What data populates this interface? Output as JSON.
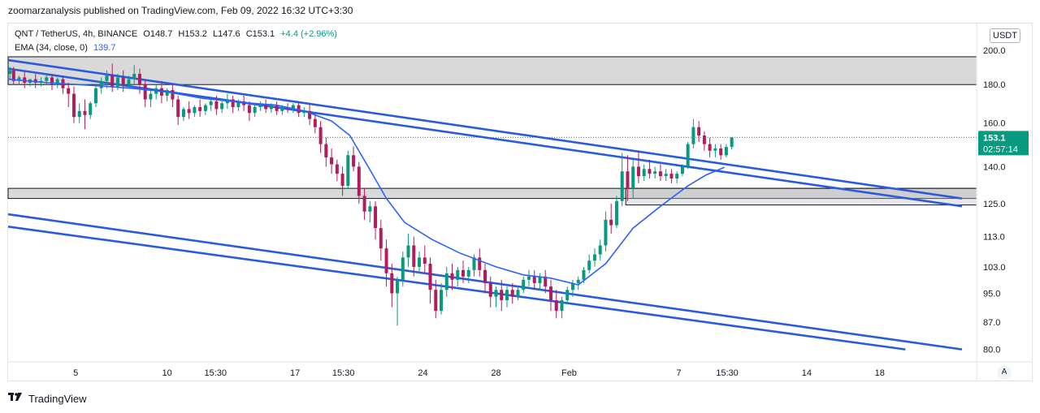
{
  "header": {
    "published_line": "zoomarzanalysis published on TradingView.com, Feb 09, 2022 16:32 UTC+3:30"
  },
  "legend": {
    "symbol": "QNT / TetherUS, 4h, BINANCE",
    "open": "O148.7",
    "high": "H153.2",
    "low": "L147.6",
    "close": "C153.1",
    "change": "+4.4 (+2.96%)",
    "ema_label": "EMA (34, close, 0)",
    "ema_value": "139.7"
  },
  "controls": {
    "currency": "USDT",
    "auto_scale": "A"
  },
  "footer": {
    "brand": "TradingView"
  },
  "colors": {
    "up": "#089981",
    "down": "#b11c5e",
    "ema": "#2962ff",
    "trendline": "#2a5bde",
    "zone": "#cfcfcf"
  },
  "chart_data": {
    "type": "candlestick",
    "symbol": "QNT / TetherUS",
    "interval": "4h",
    "exchange": "BINANCE",
    "last_price": {
      "label": "153.1",
      "countdown": "02:57:14"
    },
    "y_ticks": [
      "200.0",
      "180.0",
      "160.0",
      "140.0",
      "125.0",
      "113.0",
      "103.0",
      "95.0",
      "87.0",
      "80.0"
    ],
    "y_tick_values": [
      200,
      180,
      160,
      140,
      125,
      113,
      103,
      95,
      87,
      80
    ],
    "y_scale": "log",
    "ylim": [
      77,
      217
    ],
    "x_ticks": [
      "5",
      "10",
      "15:30",
      "17",
      "15:30",
      "24",
      "28",
      "Feb",
      "7",
      "15:30",
      "14",
      "18"
    ],
    "x_tick_days": [
      5,
      10,
      12.65,
      17,
      19.65,
      24,
      28,
      32,
      38,
      40.65,
      45,
      49
    ],
    "xlim_days": [
      1.3,
      54.3
    ],
    "x_unit": "days since Jan 1, 2022",
    "zones": [
      {
        "from": 180,
        "to": 196
      },
      {
        "from": 127,
        "to": 131
      }
    ],
    "trendlines": [
      {
        "start": [
          1.3,
          194
        ],
        "end": [
          53.5,
          127
        ]
      },
      {
        "start": [
          1.3,
          189
        ],
        "end": [
          53.5,
          124
        ]
      },
      {
        "start": [
          1.3,
          121
        ],
        "end": [
          53.5,
          80
        ]
      },
      {
        "start": [
          1.3,
          116.5
        ],
        "end": [
          50.4,
          80
        ]
      }
    ],
    "ema_34": [
      [
        1.3,
        183
      ],
      [
        3.5,
        181
      ],
      [
        6,
        179.5
      ],
      [
        8,
        178
      ],
      [
        10,
        176
      ],
      [
        12,
        172.5
      ],
      [
        14,
        170.5
      ],
      [
        16,
        169
      ],
      [
        17.5,
        166
      ],
      [
        19,
        161
      ],
      [
        20,
        154
      ],
      [
        21,
        140
      ],
      [
        22,
        127
      ],
      [
        23,
        118
      ],
      [
        24.5,
        112
      ],
      [
        26,
        107.5
      ],
      [
        28,
        103
      ],
      [
        29.5,
        100.5
      ],
      [
        31,
        99.5
      ],
      [
        32.5,
        97.5
      ],
      [
        34,
        104
      ],
      [
        35.5,
        116
      ],
      [
        37,
        124
      ],
      [
        38.5,
        132
      ],
      [
        39.5,
        136.5
      ],
      [
        40.5,
        139.7
      ]
    ],
    "candles": [
      {
        "x": 1.4,
        "o": 186,
        "h": 190,
        "c": 188,
        "l": 183
      },
      {
        "x": 1.6,
        "o": 188,
        "h": 190,
        "c": 182,
        "l": 180
      },
      {
        "x": 1.9,
        "o": 182,
        "h": 185,
        "c": 184,
        "l": 180
      },
      {
        "x": 2.2,
        "o": 184,
        "h": 187,
        "c": 181,
        "l": 178
      },
      {
        "x": 2.5,
        "o": 181,
        "h": 183,
        "c": 183,
        "l": 179
      },
      {
        "x": 2.8,
        "o": 183,
        "h": 186,
        "c": 181,
        "l": 178
      },
      {
        "x": 3.1,
        "o": 181,
        "h": 184,
        "c": 182,
        "l": 179
      },
      {
        "x": 3.4,
        "o": 182,
        "h": 186,
        "c": 184,
        "l": 180
      },
      {
        "x": 3.7,
        "o": 184,
        "h": 186,
        "c": 180,
        "l": 177
      },
      {
        "x": 4.0,
        "o": 180,
        "h": 184,
        "c": 183,
        "l": 178
      },
      {
        "x": 4.3,
        "o": 183,
        "h": 185,
        "c": 178,
        "l": 175
      },
      {
        "x": 4.6,
        "o": 178,
        "h": 181,
        "c": 175,
        "l": 168
      },
      {
        "x": 4.9,
        "o": 175,
        "h": 179,
        "c": 163,
        "l": 160
      },
      {
        "x": 5.2,
        "o": 163,
        "h": 170,
        "c": 166,
        "l": 160
      },
      {
        "x": 5.5,
        "o": 166,
        "h": 172,
        "c": 164,
        "l": 157
      },
      {
        "x": 5.8,
        "o": 164,
        "h": 171,
        "c": 170,
        "l": 162
      },
      {
        "x": 6.1,
        "o": 170,
        "h": 180,
        "c": 178,
        "l": 168
      },
      {
        "x": 6.4,
        "o": 178,
        "h": 184,
        "c": 182,
        "l": 175
      },
      {
        "x": 6.7,
        "o": 182,
        "h": 188,
        "c": 185,
        "l": 178
      },
      {
        "x": 7.0,
        "o": 185,
        "h": 192,
        "c": 179,
        "l": 176
      },
      {
        "x": 7.3,
        "o": 179,
        "h": 186,
        "c": 184,
        "l": 177
      },
      {
        "x": 7.6,
        "o": 184,
        "h": 188,
        "c": 180,
        "l": 176
      },
      {
        "x": 7.9,
        "o": 180,
        "h": 185,
        "c": 183,
        "l": 178
      },
      {
        "x": 8.2,
        "o": 183,
        "h": 191,
        "c": 186,
        "l": 180
      },
      {
        "x": 8.5,
        "o": 186,
        "h": 189,
        "c": 180,
        "l": 175
      },
      {
        "x": 8.8,
        "o": 180,
        "h": 182,
        "c": 172,
        "l": 168
      },
      {
        "x": 9.1,
        "o": 172,
        "h": 177,
        "c": 175,
        "l": 168
      },
      {
        "x": 9.4,
        "o": 175,
        "h": 180,
        "c": 178,
        "l": 172
      },
      {
        "x": 9.7,
        "o": 178,
        "h": 182,
        "c": 174,
        "l": 170
      },
      {
        "x": 10.0,
        "o": 174,
        "h": 178,
        "c": 177,
        "l": 171
      },
      {
        "x": 10.3,
        "o": 177,
        "h": 180,
        "c": 172,
        "l": 168
      },
      {
        "x": 10.6,
        "o": 172,
        "h": 174,
        "c": 163,
        "l": 159
      },
      {
        "x": 10.9,
        "o": 163,
        "h": 168,
        "c": 167,
        "l": 161
      },
      {
        "x": 11.2,
        "o": 167,
        "h": 171,
        "c": 165,
        "l": 162
      },
      {
        "x": 11.5,
        "o": 165,
        "h": 169,
        "c": 168,
        "l": 163
      },
      {
        "x": 11.8,
        "o": 168,
        "h": 172,
        "c": 166,
        "l": 163
      },
      {
        "x": 12.1,
        "o": 166,
        "h": 170,
        "c": 169,
        "l": 164
      },
      {
        "x": 12.4,
        "o": 169,
        "h": 173,
        "c": 171,
        "l": 166
      },
      {
        "x": 12.7,
        "o": 171,
        "h": 174,
        "c": 167,
        "l": 164
      },
      {
        "x": 13.0,
        "o": 167,
        "h": 171,
        "c": 170,
        "l": 165
      },
      {
        "x": 13.3,
        "o": 170,
        "h": 175,
        "c": 172,
        "l": 167
      },
      {
        "x": 13.6,
        "o": 172,
        "h": 174,
        "c": 168,
        "l": 165
      },
      {
        "x": 13.9,
        "o": 168,
        "h": 172,
        "c": 171,
        "l": 166
      },
      {
        "x": 14.2,
        "o": 171,
        "h": 174,
        "c": 169,
        "l": 166
      },
      {
        "x": 14.5,
        "o": 169,
        "h": 171,
        "c": 165,
        "l": 161
      },
      {
        "x": 14.8,
        "o": 165,
        "h": 169,
        "c": 168,
        "l": 163
      },
      {
        "x": 15.1,
        "o": 168,
        "h": 171,
        "c": 169,
        "l": 166
      },
      {
        "x": 15.4,
        "o": 169,
        "h": 172,
        "c": 167,
        "l": 165
      },
      {
        "x": 15.7,
        "o": 167,
        "h": 170,
        "c": 169,
        "l": 165
      },
      {
        "x": 16.0,
        "o": 169,
        "h": 171,
        "c": 166,
        "l": 164
      },
      {
        "x": 16.3,
        "o": 166,
        "h": 169,
        "c": 168,
        "l": 164
      },
      {
        "x": 16.6,
        "o": 168,
        "h": 170,
        "c": 167,
        "l": 165
      },
      {
        "x": 16.9,
        "o": 167,
        "h": 170,
        "c": 169,
        "l": 165
      },
      {
        "x": 17.2,
        "o": 169,
        "h": 171,
        "c": 165,
        "l": 163
      },
      {
        "x": 17.5,
        "o": 165,
        "h": 168,
        "c": 166,
        "l": 163
      },
      {
        "x": 17.8,
        "o": 166,
        "h": 170,
        "c": 162,
        "l": 159
      },
      {
        "x": 18.1,
        "o": 162,
        "h": 165,
        "c": 158,
        "l": 155
      },
      {
        "x": 18.4,
        "o": 158,
        "h": 161,
        "c": 150,
        "l": 146
      },
      {
        "x": 18.7,
        "o": 150,
        "h": 153,
        "c": 144,
        "l": 140
      },
      {
        "x": 19.0,
        "o": 144,
        "h": 148,
        "c": 141,
        "l": 137
      },
      {
        "x": 19.3,
        "o": 141,
        "h": 143,
        "c": 137,
        "l": 134
      },
      {
        "x": 19.6,
        "o": 137,
        "h": 140,
        "c": 132,
        "l": 128
      },
      {
        "x": 19.9,
        "o": 132,
        "h": 147,
        "c": 145,
        "l": 131
      },
      {
        "x": 20.2,
        "o": 145,
        "h": 149,
        "c": 140,
        "l": 138
      },
      {
        "x": 20.5,
        "o": 140,
        "h": 142,
        "c": 128,
        "l": 125
      },
      {
        "x": 20.8,
        "o": 128,
        "h": 131,
        "c": 122,
        "l": 119
      },
      {
        "x": 21.1,
        "o": 122,
        "h": 126,
        "c": 124,
        "l": 118
      },
      {
        "x": 21.4,
        "o": 124,
        "h": 126,
        "c": 116,
        "l": 112
      },
      {
        "x": 21.7,
        "o": 116,
        "h": 119,
        "c": 109,
        "l": 105
      },
      {
        "x": 22.0,
        "o": 109,
        "h": 112,
        "c": 101,
        "l": 97
      },
      {
        "x": 22.3,
        "o": 101,
        "h": 104,
        "c": 95,
        "l": 91
      },
      {
        "x": 22.6,
        "o": 95,
        "h": 100,
        "c": 99,
        "l": 86
      },
      {
        "x": 22.9,
        "o": 99,
        "h": 108,
        "c": 106,
        "l": 97
      },
      {
        "x": 23.2,
        "o": 106,
        "h": 114,
        "c": 110,
        "l": 103
      },
      {
        "x": 23.5,
        "o": 110,
        "h": 113,
        "c": 103,
        "l": 100
      },
      {
        "x": 23.8,
        "o": 103,
        "h": 108,
        "c": 106,
        "l": 101
      },
      {
        "x": 24.1,
        "o": 106,
        "h": 110,
        "c": 104,
        "l": 101
      },
      {
        "x": 24.4,
        "o": 104,
        "h": 106,
        "c": 96,
        "l": 92
      },
      {
        "x": 24.7,
        "o": 96,
        "h": 99,
        "c": 90,
        "l": 88
      },
      {
        "x": 25.0,
        "o": 90,
        "h": 98,
        "c": 96,
        "l": 89
      },
      {
        "x": 25.3,
        "o": 96,
        "h": 103,
        "c": 101,
        "l": 94
      },
      {
        "x": 25.6,
        "o": 101,
        "h": 104,
        "c": 99,
        "l": 96
      },
      {
        "x": 25.9,
        "o": 99,
        "h": 103,
        "c": 102,
        "l": 97
      },
      {
        "x": 26.2,
        "o": 102,
        "h": 105,
        "c": 100,
        "l": 98
      },
      {
        "x": 26.5,
        "o": 100,
        "h": 103,
        "c": 102,
        "l": 98
      },
      {
        "x": 26.8,
        "o": 102,
        "h": 107,
        "c": 106,
        "l": 100
      },
      {
        "x": 27.1,
        "o": 106,
        "h": 109,
        "c": 102,
        "l": 100
      },
      {
        "x": 27.4,
        "o": 102,
        "h": 104,
        "c": 98,
        "l": 95
      },
      {
        "x": 27.7,
        "o": 98,
        "h": 100,
        "c": 94,
        "l": 91
      },
      {
        "x": 28.0,
        "o": 94,
        "h": 97,
        "c": 96,
        "l": 91
      },
      {
        "x": 28.3,
        "o": 96,
        "h": 99,
        "c": 93,
        "l": 90
      },
      {
        "x": 28.6,
        "o": 93,
        "h": 97,
        "c": 96,
        "l": 91
      },
      {
        "x": 28.9,
        "o": 96,
        "h": 98,
        "c": 94,
        "l": 92
      },
      {
        "x": 29.2,
        "o": 94,
        "h": 97,
        "c": 96,
        "l": 93
      },
      {
        "x": 29.5,
        "o": 96,
        "h": 100,
        "c": 99,
        "l": 95
      },
      {
        "x": 29.8,
        "o": 99,
        "h": 102,
        "c": 100,
        "l": 97
      },
      {
        "x": 30.1,
        "o": 100,
        "h": 102,
        "c": 98,
        "l": 96
      },
      {
        "x": 30.4,
        "o": 98,
        "h": 101,
        "c": 100,
        "l": 96
      },
      {
        "x": 30.7,
        "o": 100,
        "h": 102,
        "c": 97,
        "l": 95
      },
      {
        "x": 31.0,
        "o": 97,
        "h": 99,
        "c": 93,
        "l": 90
      },
      {
        "x": 31.3,
        "o": 93,
        "h": 96,
        "c": 90,
        "l": 88
      },
      {
        "x": 31.6,
        "o": 90,
        "h": 94,
        "c": 93,
        "l": 88
      },
      {
        "x": 31.9,
        "o": 93,
        "h": 97,
        "c": 96,
        "l": 92
      },
      {
        "x": 32.2,
        "o": 96,
        "h": 99,
        "c": 98,
        "l": 94
      },
      {
        "x": 32.5,
        "o": 98,
        "h": 100,
        "c": 99,
        "l": 96
      },
      {
        "x": 32.8,
        "o": 99,
        "h": 103,
        "c": 102,
        "l": 98
      },
      {
        "x": 33.1,
        "o": 102,
        "h": 107,
        "c": 105,
        "l": 101
      },
      {
        "x": 33.4,
        "o": 105,
        "h": 109,
        "c": 107,
        "l": 103
      },
      {
        "x": 33.7,
        "o": 107,
        "h": 112,
        "c": 110,
        "l": 105
      },
      {
        "x": 34.0,
        "o": 110,
        "h": 122,
        "c": 119,
        "l": 108
      },
      {
        "x": 34.3,
        "o": 119,
        "h": 125,
        "c": 117,
        "l": 114
      },
      {
        "x": 34.6,
        "o": 117,
        "h": 128,
        "c": 126,
        "l": 116
      },
      {
        "x": 34.9,
        "o": 126,
        "h": 146,
        "c": 138,
        "l": 124
      },
      {
        "x": 35.2,
        "o": 138,
        "h": 145,
        "c": 131,
        "l": 126
      },
      {
        "x": 35.5,
        "o": 131,
        "h": 143,
        "c": 140,
        "l": 127
      },
      {
        "x": 35.8,
        "o": 140,
        "h": 147,
        "c": 136,
        "l": 133
      },
      {
        "x": 36.1,
        "o": 136,
        "h": 141,
        "c": 139,
        "l": 134
      },
      {
        "x": 36.4,
        "o": 139,
        "h": 143,
        "c": 137,
        "l": 135
      },
      {
        "x": 36.7,
        "o": 137,
        "h": 140,
        "c": 138,
        "l": 135
      },
      {
        "x": 37.0,
        "o": 138,
        "h": 141,
        "c": 136,
        "l": 134
      },
      {
        "x": 37.3,
        "o": 136,
        "h": 139,
        "c": 137,
        "l": 134
      },
      {
        "x": 37.6,
        "o": 137,
        "h": 139,
        "c": 135,
        "l": 133
      },
      {
        "x": 37.9,
        "o": 135,
        "h": 138,
        "c": 137,
        "l": 133
      },
      {
        "x": 38.2,
        "o": 137,
        "h": 141,
        "c": 140,
        "l": 136
      },
      {
        "x": 38.5,
        "o": 140,
        "h": 151,
        "c": 150,
        "l": 139
      },
      {
        "x": 38.8,
        "o": 150,
        "h": 162,
        "c": 158,
        "l": 148
      },
      {
        "x": 39.1,
        "o": 158,
        "h": 161,
        "c": 154,
        "l": 151
      },
      {
        "x": 39.4,
        "o": 154,
        "h": 156,
        "c": 150,
        "l": 147
      },
      {
        "x": 39.7,
        "o": 150,
        "h": 153,
        "c": 147,
        "l": 144
      },
      {
        "x": 40.0,
        "o": 147,
        "h": 150,
        "c": 148,
        "l": 144
      },
      {
        "x": 40.3,
        "o": 148,
        "h": 150,
        "c": 145,
        "l": 143
      },
      {
        "x": 40.6,
        "o": 145,
        "h": 150,
        "c": 148.7,
        "l": 144
      },
      {
        "x": 40.9,
        "o": 148.7,
        "h": 153.2,
        "c": 153.1,
        "l": 147.6
      }
    ]
  }
}
